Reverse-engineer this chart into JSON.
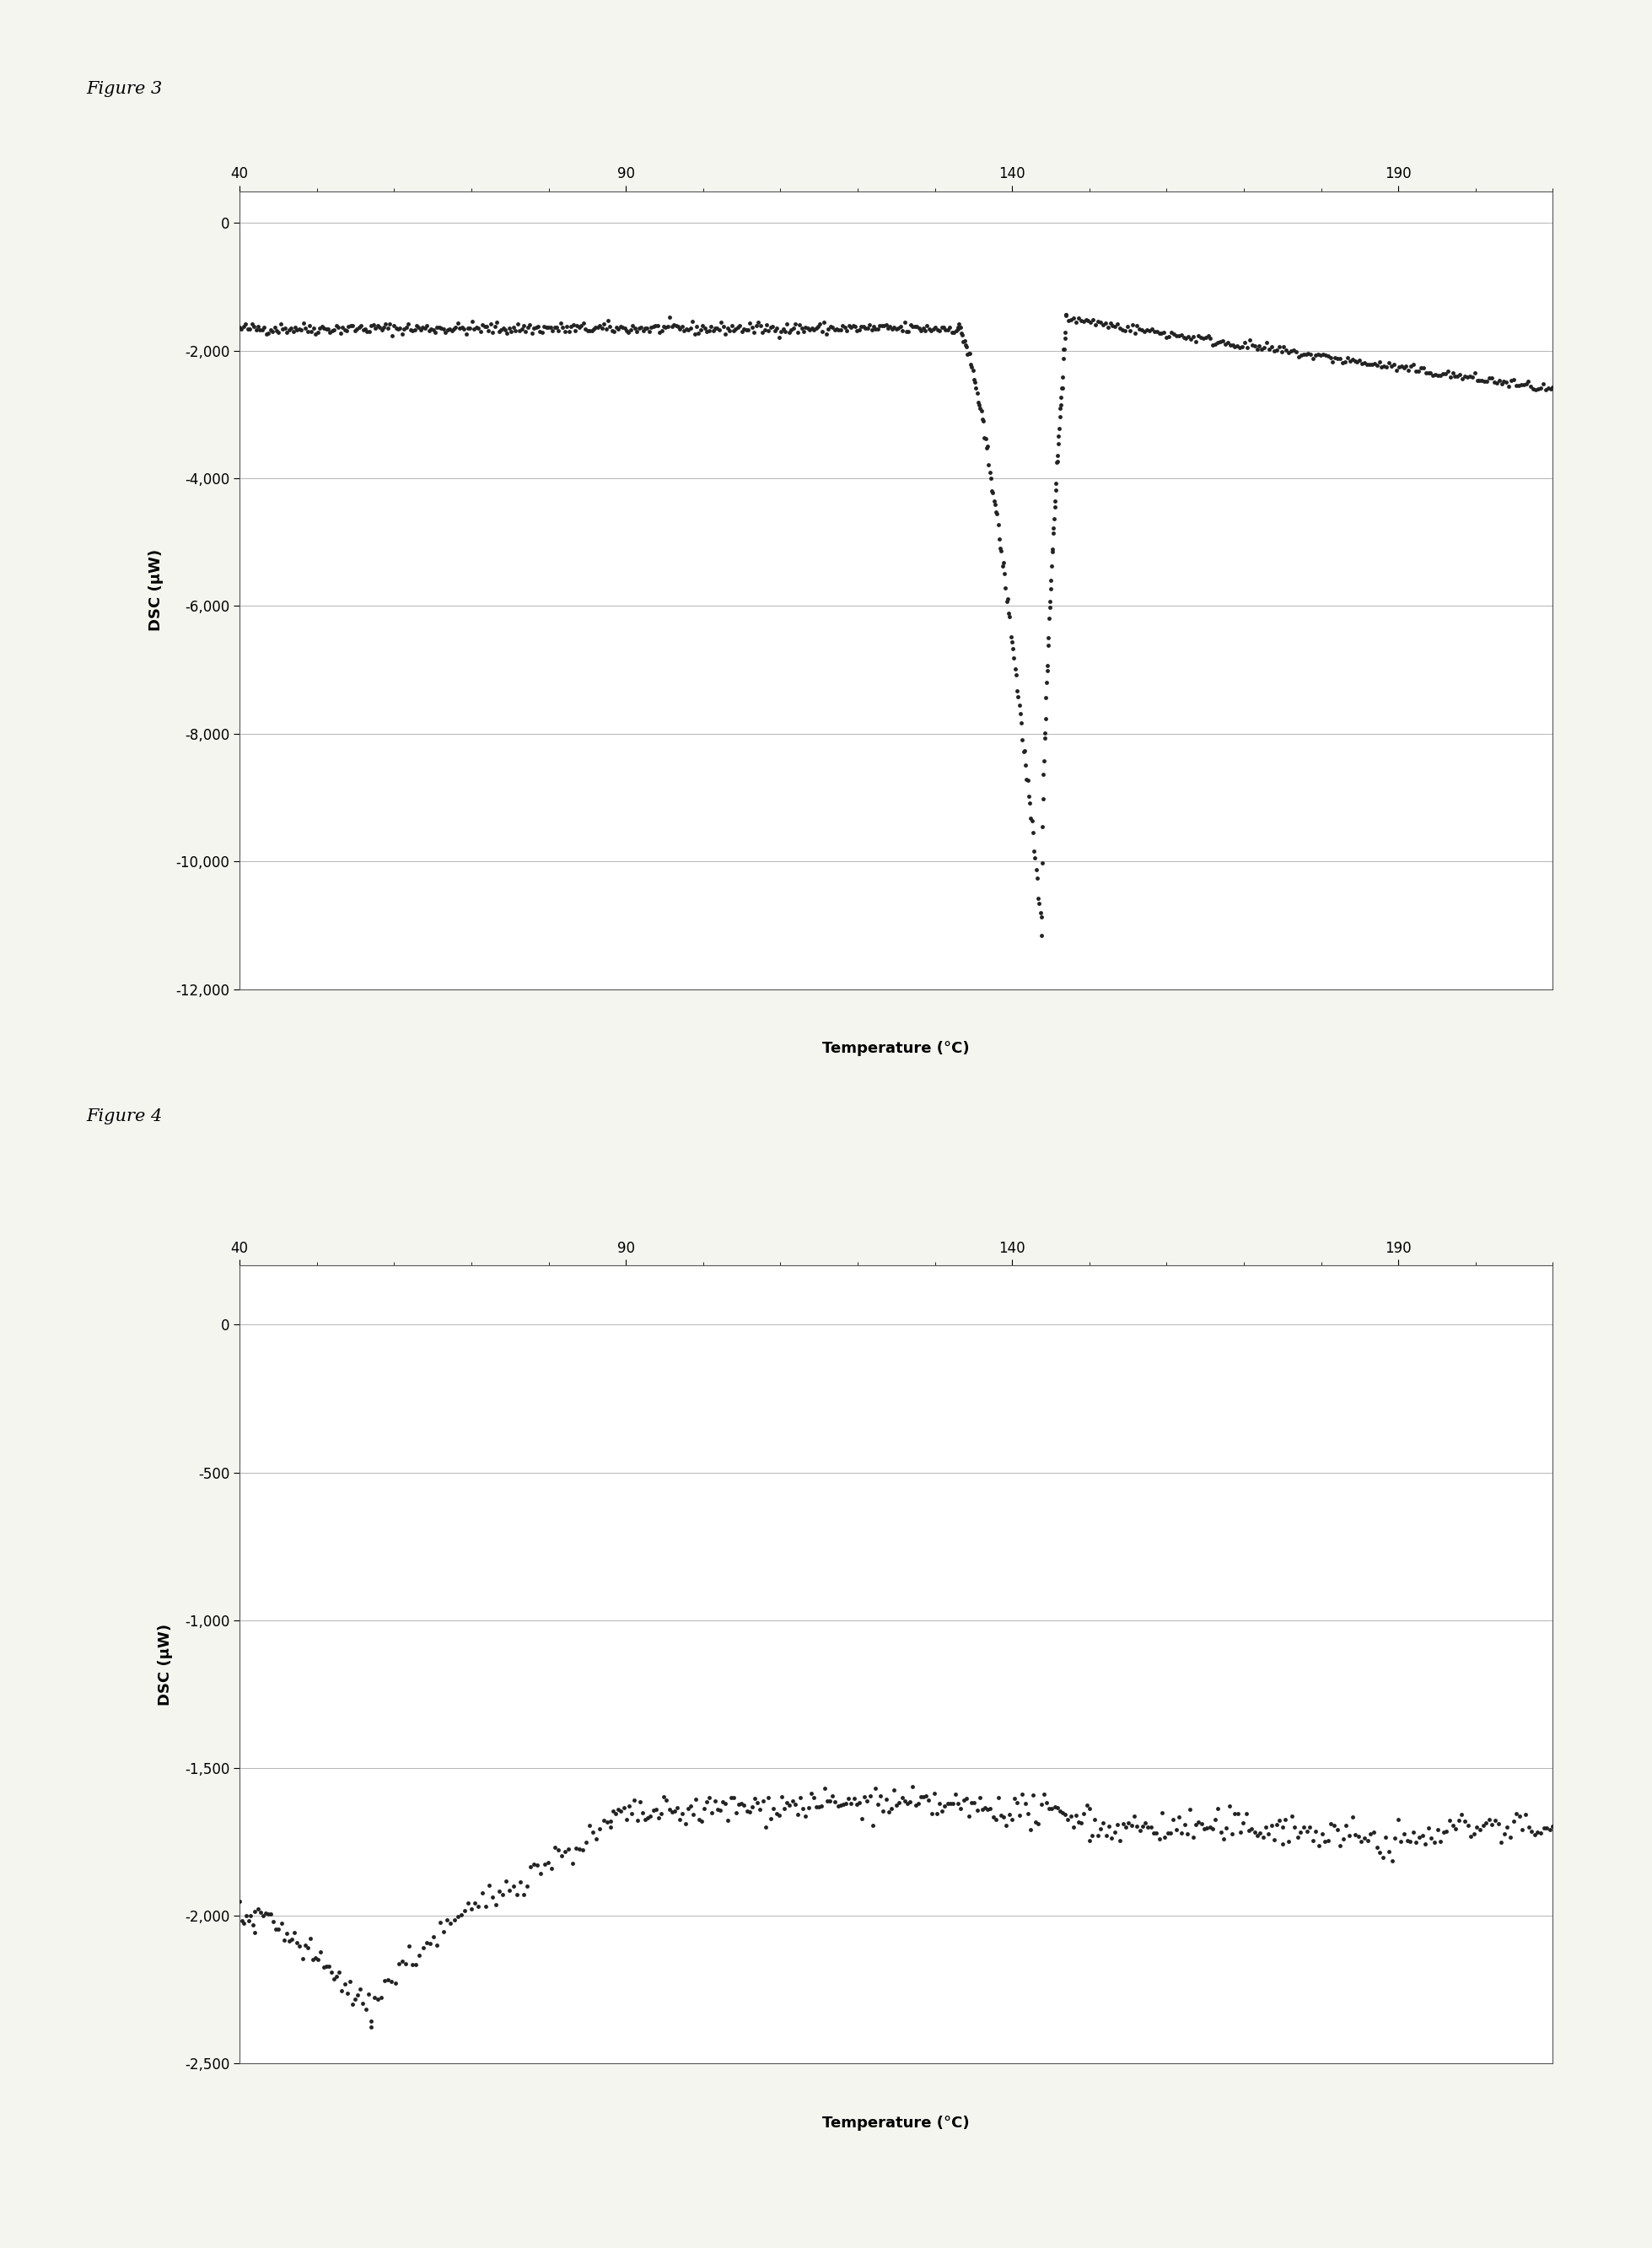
{
  "fig3_title": "Figure 3",
  "fig4_title": "Figure 4",
  "xlabel": "Temperature (°C)",
  "ylabel": "DSC (μW)",
  "fig3_xlim": [
    40,
    210
  ],
  "fig3_ylim": [
    -12000,
    500
  ],
  "fig3_yticks": [
    0,
    -2000,
    -4000,
    -6000,
    -8000,
    -10000,
    -12000
  ],
  "fig3_xticks": [
    40,
    90,
    140,
    190
  ],
  "fig4_xlim": [
    40,
    210
  ],
  "fig4_ylim": [
    -2500,
    200
  ],
  "fig4_yticks": [
    0,
    -500,
    -1000,
    -1500,
    -2000,
    -2500
  ],
  "fig4_xticks": [
    40,
    90,
    140,
    190
  ],
  "background_color": "#f5f5f0",
  "data_color": "#222222",
  "marker_size": 3.5,
  "title_fontsize": 15,
  "axis_label_fontsize": 13,
  "tick_fontsize": 12
}
